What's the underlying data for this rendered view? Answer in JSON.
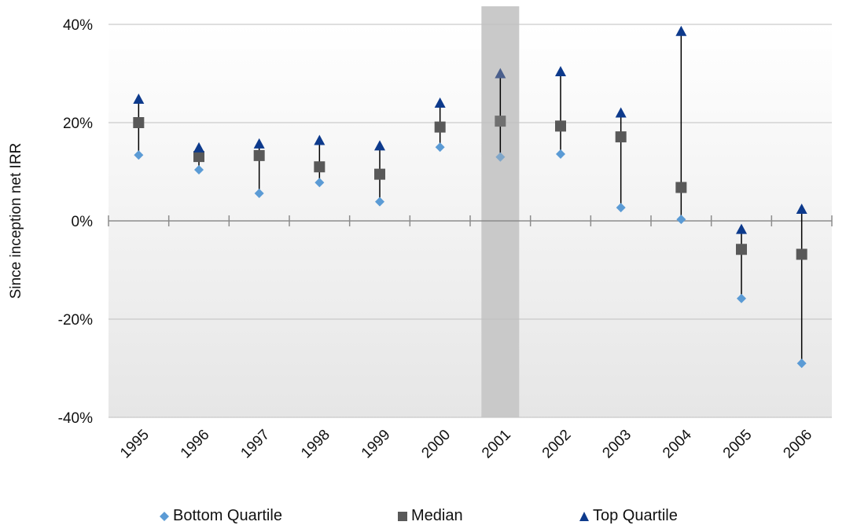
{
  "chart_data": {
    "type": "scatter",
    "ylabel": "Since inception net IRR",
    "xlabel": "",
    "ylim": [
      -40,
      40
    ],
    "yticks": [
      -40,
      -20,
      0,
      20,
      40
    ],
    "ytick_labels": [
      "-40%",
      "-20%",
      "0%",
      "20%",
      "40%"
    ],
    "categories": [
      "1995",
      "1996",
      "1997",
      "1998",
      "1999",
      "2000",
      "2001",
      "2002",
      "2003",
      "2004",
      "2005",
      "2006"
    ],
    "highlighted_category": "2001",
    "series": [
      {
        "name": "Bottom Quartile",
        "marker": "diamond",
        "color": "#5b9bd5",
        "values": [
          13.4,
          10.4,
          5.6,
          7.8,
          3.9,
          15.0,
          13.0,
          13.6,
          2.7,
          0.3,
          -15.8,
          -29.0
        ]
      },
      {
        "name": "Median",
        "marker": "square",
        "color": "#595959",
        "values": [
          20.0,
          13.1,
          13.3,
          11.0,
          9.5,
          19.1,
          20.3,
          19.3,
          17.1,
          6.8,
          -5.8,
          -6.8
        ]
      },
      {
        "name": "Top Quartile",
        "marker": "triangle",
        "color": "#0d3a8c",
        "values": [
          24.8,
          14.9,
          15.7,
          16.4,
          15.3,
          24.0,
          30.0,
          30.4,
          22.0,
          38.6,
          -1.7,
          2.4
        ]
      }
    ],
    "grid": true,
    "legend_position": "bottom"
  }
}
